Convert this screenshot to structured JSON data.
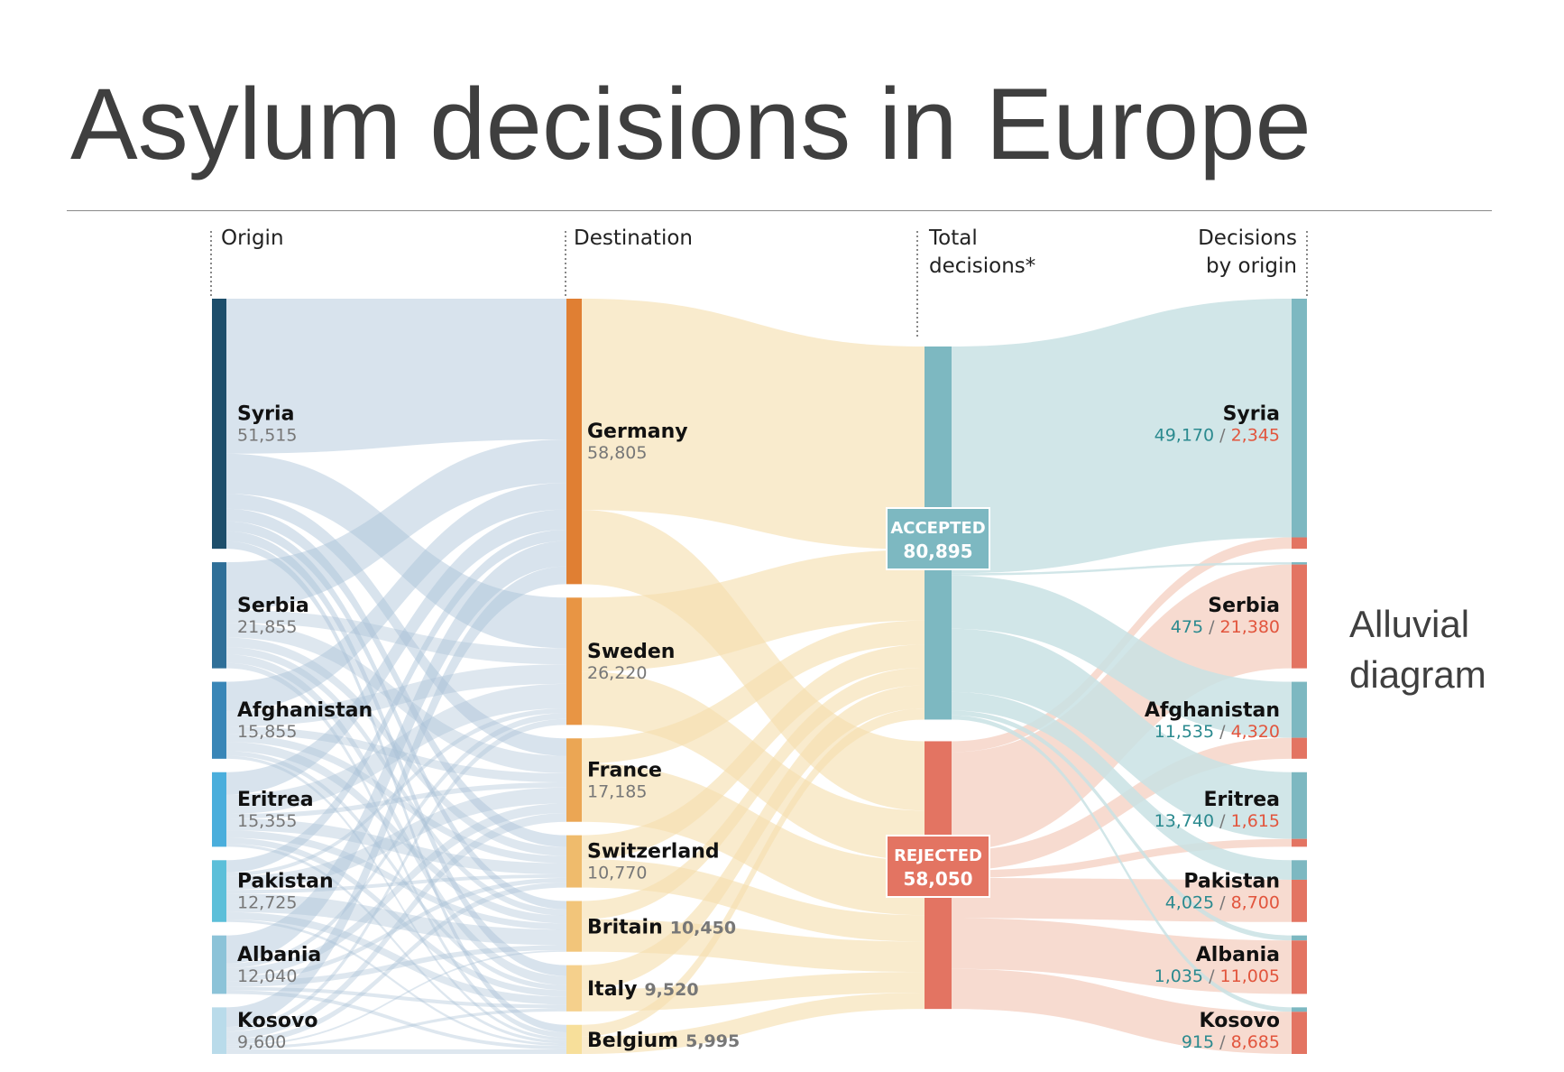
{
  "title": "Asylum decisions in Europe",
  "side_label": [
    "Alluvial",
    "diagram"
  ],
  "colors": {
    "origin_bar": [
      "#1d4e6b",
      "#2f6f98",
      "#3986b7",
      "#4aaedc",
      "#5cbfd9",
      "#8cc3d8",
      "#b9dbea"
    ],
    "origin_flow": "#a9c1d6",
    "dest_bar": [
      "#e07f33",
      "#e89544",
      "#eba654",
      "#efbb6c",
      "#f2c57a",
      "#f5d08c",
      "#f7df9a"
    ],
    "dest_flow": "#f6dfae",
    "accepted": "#7db8c1",
    "accepted_flow": "#c9e2e4",
    "rejected": "#e37462",
    "rejected_flow": "#f6d5c8",
    "label_accepted": "#2b8a8f",
    "label_rejected": "#e2553d"
  },
  "chart_data": {
    "type": "alluvial",
    "columns": [
      "Origin",
      "Destination",
      "Total decisions*",
      "Decisions by origin"
    ],
    "origins": [
      {
        "name": "Syria",
        "value": "51,515"
      },
      {
        "name": "Serbia",
        "value": "21,855"
      },
      {
        "name": "Afghanistan",
        "value": "15,855"
      },
      {
        "name": "Eritrea",
        "value": "15,355"
      },
      {
        "name": "Pakistan",
        "value": "12,725"
      },
      {
        "name": "Albania",
        "value": "12,040"
      },
      {
        "name": "Kosovo",
        "value": "9,600"
      }
    ],
    "destinations": [
      {
        "name": "Germany",
        "value": "58,805"
      },
      {
        "name": "Sweden",
        "value": "26,220"
      },
      {
        "name": "France",
        "value": "17,185"
      },
      {
        "name": "Switzerland",
        "value": "10,770"
      },
      {
        "name": "Britain",
        "value": "10,450"
      },
      {
        "name": "Italy",
        "value": "9,520"
      },
      {
        "name": "Belgium",
        "value": "5,995"
      }
    ],
    "totals": [
      {
        "name": "ACCEPTED",
        "value": "80,895"
      },
      {
        "name": "REJECTED",
        "value": "58,050"
      }
    ],
    "decisions_by_origin": [
      {
        "name": "Syria",
        "accepted": "49,170",
        "rejected": "2,345"
      },
      {
        "name": "Serbia",
        "accepted": "475",
        "rejected": "21,380"
      },
      {
        "name": "Afghanistan",
        "accepted": "11,535",
        "rejected": "4,320"
      },
      {
        "name": "Eritrea",
        "accepted": "13,740",
        "rejected": "1,615"
      },
      {
        "name": "Pakistan",
        "accepted": "4,025",
        "rejected": "8,700"
      },
      {
        "name": "Albania",
        "accepted": "1,035",
        "rejected": "11,005"
      },
      {
        "name": "Kosovo",
        "accepted": "915",
        "rejected": "8,685"
      }
    ]
  }
}
